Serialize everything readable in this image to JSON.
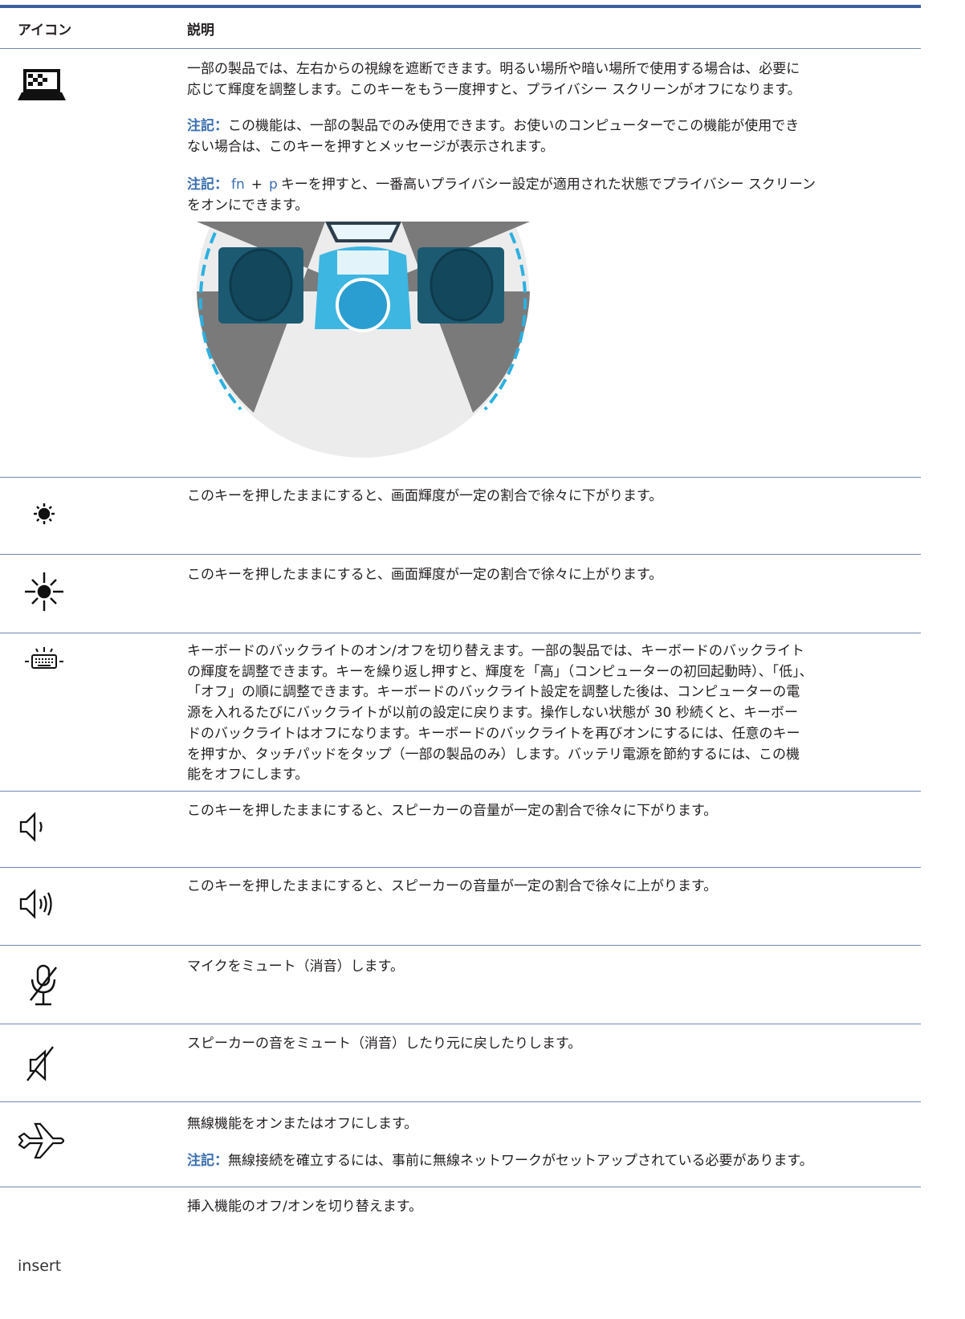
{
  "header": {
    "icon": "アイコン",
    "description": "説明"
  },
  "rows": [
    {
      "paragraphs": [
        {
          "lines": [
            "一部の製品では、左右からの視線を遮断できます。明るい場所や暗い場所で使用する場合は、必要に",
            "応じて輝度を調整します。このキーをもう一度押すと、プライバシー スクリーンがオフになります。"
          ]
        },
        {
          "note": "注記：",
          "lines": [
            "この機能は、一部の製品でのみ使用できます。お使いのコンピューターでこの機能が使用でき",
            "ない場合は、このキーを押すとメッセージが表示されます。"
          ]
        },
        {
          "note": "注記：",
          "keys": [
            "fn",
            "+",
            "p"
          ],
          "lines": [
            "キーを押すと、一番高いプライバシー設定が適用された状態でプライバシー スクリーン",
            "をオンにできます。"
          ]
        }
      ]
    },
    {
      "paragraphs": [
        {
          "lines": [
            "このキーを押したままにすると、画面輝度が一定の割合で徐々に下がります。"
          ]
        }
      ]
    },
    {
      "paragraphs": [
        {
          "lines": [
            "このキーを押したままにすると、画面輝度が一定の割合で徐々に上がります。"
          ]
        }
      ]
    },
    {
      "paragraphs": [
        {
          "lines": [
            "キーボードのバックライトのオン/オフを切り替えます。一部の製品では、キーボードのバックライト",
            "の輝度を調整できます。キーを繰り返し押すと、輝度を「高」（コンピューターの初回起動時）、「低」、",
            "「オフ」の順に調整できます。キーボードのバックライト設定を調整した後は、コンピューターの電",
            "源を入れるたびにバックライトが以前の設定に戻ります。操作しない状態が 30 秒続くと、キーボー",
            "ドのバックライトはオフになります。キーボードのバックライトを再びオンにするには、任意のキー",
            "を押すか、タッチパッドをタップ（一部の製品のみ）します。バッテリ電源を節約するには、この機",
            "能をオフにします。"
          ]
        }
      ]
    },
    {
      "paragraphs": [
        {
          "lines": [
            "このキーを押したままにすると、スピーカーの音量が一定の割合で徐々に下がります。"
          ]
        }
      ]
    },
    {
      "paragraphs": [
        {
          "lines": [
            "このキーを押したままにすると、スピーカーの音量が一定の割合で徐々に上がります。"
          ]
        }
      ]
    },
    {
      "paragraphs": [
        {
          "lines": [
            "マイクをミュート（消音）します。"
          ]
        }
      ]
    },
    {
      "paragraphs": [
        {
          "lines": [
            "スピーカーの音をミュート（消音）したり元に戻したりします。"
          ]
        }
      ]
    },
    {
      "paragraphs": [
        {
          "lines": [
            "無線機能をオンまたはオフにします。"
          ]
        },
        {
          "note": "注記：",
          "lines": [
            "無線接続を確立するには、事前に無線ネットワークがセットアップされている必要があります。"
          ]
        }
      ]
    },
    {
      "icon_text": "insert",
      "paragraphs": [
        {
          "lines": [
            "挿入機能のオフ/オンを切り替えます。"
          ]
        }
      ]
    }
  ]
}
